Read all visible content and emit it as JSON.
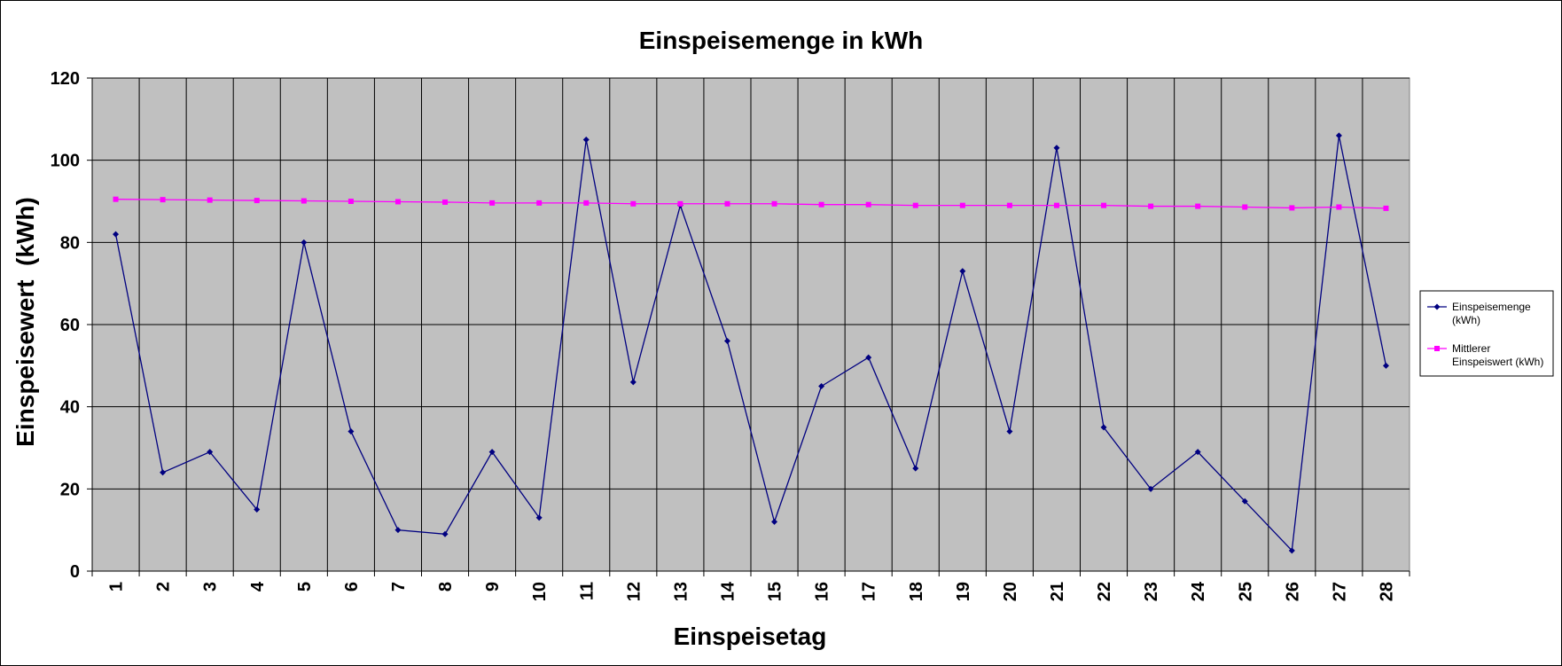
{
  "chart_data": {
    "type": "line",
    "title": "Einspeisemenge in kWh",
    "xlabel": "Einspeisetag",
    "ylabel": "Einspeisewert  (kWh)",
    "ylim": [
      0,
      120
    ],
    "yticks": [
      0,
      20,
      40,
      60,
      80,
      100,
      120
    ],
    "grid": true,
    "legend_position": "right",
    "plot_background": "#c0c0c0",
    "categories": [
      "1",
      "2",
      "3",
      "4",
      "5",
      "6",
      "7",
      "8",
      "9",
      "10",
      "11",
      "12",
      "13",
      "14",
      "15",
      "16",
      "17",
      "18",
      "19",
      "20",
      "21",
      "22",
      "23",
      "24",
      "25",
      "26",
      "27",
      "28"
    ],
    "series": [
      {
        "name": "Einspeisemenge (kWh)",
        "legend_lines": [
          "Einspeisemenge",
          "(kWh)"
        ],
        "color": "#000080",
        "marker": "diamond",
        "values": [
          82,
          24,
          29,
          15,
          80,
          34,
          10,
          9,
          29,
          13,
          105,
          46,
          89,
          56,
          12,
          45,
          52,
          25,
          73,
          34,
          103,
          35,
          20,
          29,
          17,
          5,
          106,
          50
        ]
      },
      {
        "name": "Mittlerer Einspeiswert (kWh)",
        "legend_lines": [
          "Mittlerer",
          "Einspeiswert (kWh)"
        ],
        "color": "#ff00ff",
        "marker": "square",
        "values": [
          90.5,
          90.4,
          90.3,
          90.2,
          90.1,
          90.0,
          89.9,
          89.8,
          89.6,
          89.6,
          89.6,
          89.4,
          89.4,
          89.4,
          89.4,
          89.2,
          89.2,
          89.0,
          89.0,
          89.0,
          89.0,
          89.0,
          88.8,
          88.8,
          88.6,
          88.4,
          88.6,
          88.3
        ]
      }
    ]
  }
}
